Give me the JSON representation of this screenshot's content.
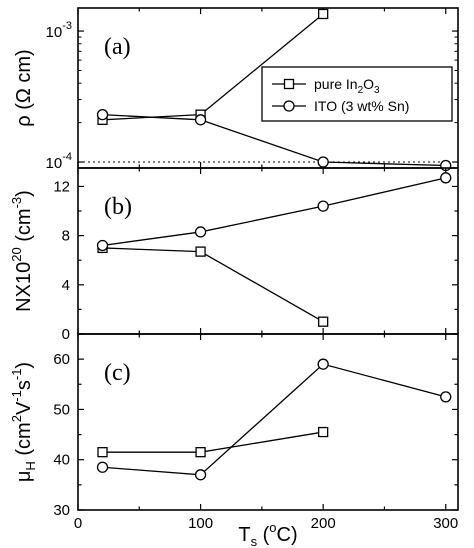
{
  "chart_data": [
    {
      "type": "line",
      "panel_label": "(a)",
      "ylabel": "ρ (Ω cm)",
      "yscale": "log",
      "ylim": [
        9e-05,
        0.0015
      ],
      "xlim": [
        0,
        310
      ],
      "yticks": [
        {
          "value": 0.0001,
          "base": "10",
          "exp": "-4"
        },
        {
          "value": 0.001,
          "base": "10",
          "exp": "-3"
        }
      ],
      "reference_line": {
        "y": 0.0001,
        "style": "dotted"
      },
      "series": [
        {
          "name": "pure In2O3",
          "legend_main": "pure In",
          "legend_sub1": "2",
          "legend_mid": "O",
          "legend_sub2": "3",
          "marker": "square",
          "x": [
            20,
            100,
            200
          ],
          "y": [
            0.00021,
            0.00023,
            0.00135
          ]
        },
        {
          "name": "ITO (3 wt% Sn)",
          "legend_main": "ITO (3 wt% Sn)",
          "marker": "circle",
          "x": [
            20,
            100,
            200,
            300
          ],
          "y": [
            0.00023,
            0.00021,
            0.0001,
            9.4e-05
          ]
        }
      ],
      "legend": {
        "position": "right"
      }
    },
    {
      "type": "line",
      "panel_label": "(b)",
      "ylabel_main": "NX10",
      "ylabel_sup": "20",
      "ylabel_unit": " (cm",
      "ylabel_unit_sup": "-3",
      "ylabel_close": ")",
      "ylim": [
        0,
        13.5
      ],
      "xlim": [
        0,
        310
      ],
      "yticks": [
        0,
        4,
        8,
        12
      ],
      "series": [
        {
          "name": "pure In2O3",
          "marker": "square",
          "x": [
            20,
            100,
            200
          ],
          "y": [
            7.0,
            6.7,
            1.0
          ]
        },
        {
          "name": "ITO (3 wt% Sn)",
          "marker": "circle",
          "x": [
            20,
            100,
            200,
            300
          ],
          "y": [
            7.2,
            8.3,
            10.4,
            12.7
          ]
        }
      ]
    },
    {
      "type": "line",
      "panel_label": "(c)",
      "ylabel_main": "μ",
      "ylabel_sub": "H",
      "ylabel_unit": " (cm",
      "ylabel_sup1": "2",
      "ylabel_mid": "V",
      "ylabel_sup2": "-1",
      "ylabel_mid2": "s",
      "ylabel_sup3": "-1",
      "ylabel_close": ")",
      "ylim": [
        30,
        65
      ],
      "xlim": [
        0,
        310
      ],
      "yticks": [
        30,
        40,
        50,
        60
      ],
      "xticks": [
        0,
        100,
        200,
        300
      ],
      "xlabel_main": "T",
      "xlabel_sub": "s",
      "xlabel_unit": " (",
      "xlabel_sup": "o",
      "xlabel_close": "C)",
      "series": [
        {
          "name": "pure In2O3",
          "marker": "square",
          "x": [
            20,
            100,
            200
          ],
          "y": [
            41.5,
            41.5,
            45.5
          ]
        },
        {
          "name": "ITO (3 wt% Sn)",
          "marker": "circle",
          "x": [
            20,
            100,
            200,
            300
          ],
          "y": [
            38.5,
            37.0,
            59.0,
            52.5
          ]
        }
      ]
    }
  ]
}
